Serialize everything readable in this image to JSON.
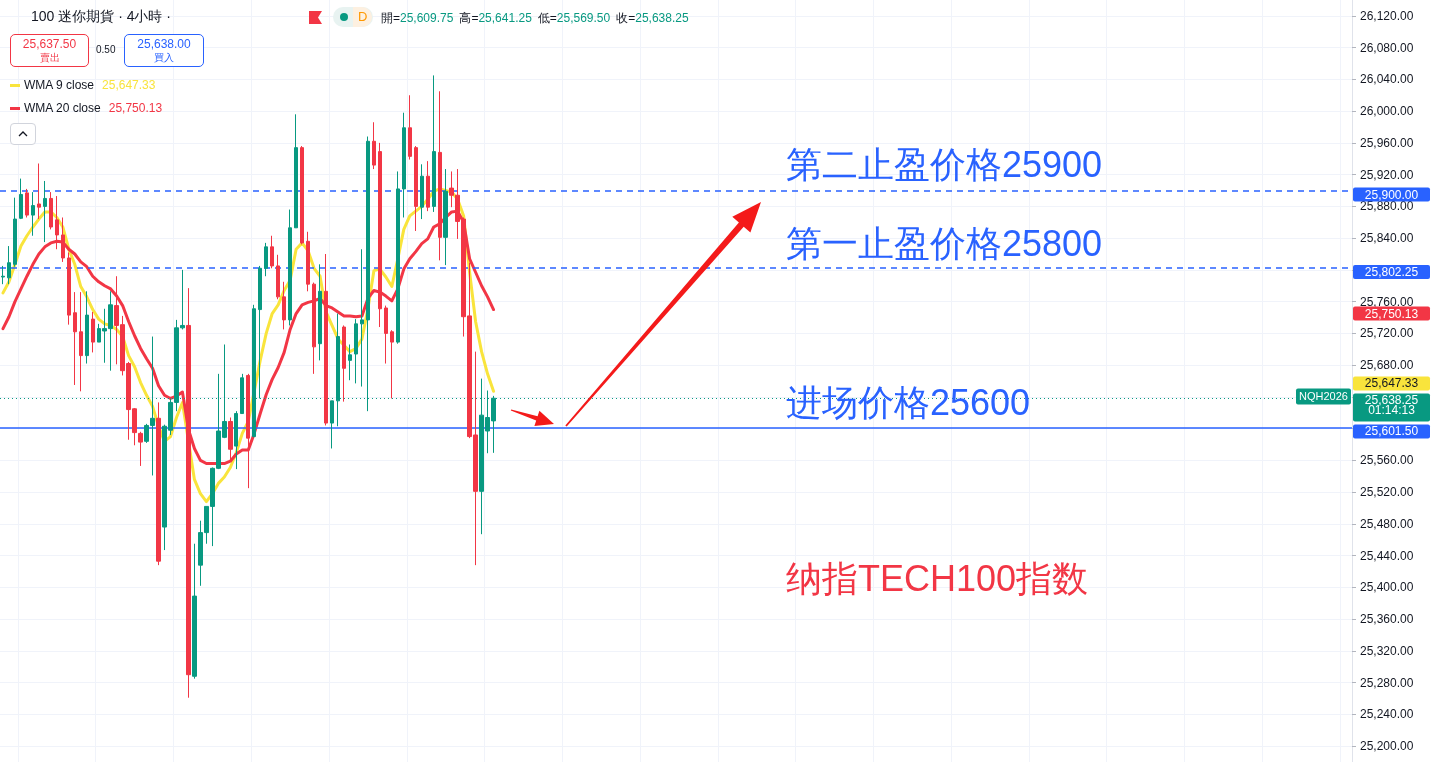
{
  "chart_data": {
    "type": "candlestick",
    "title": "100 迷你期貨 · 4小時 ·",
    "subtitle": "開=25,609.75 高=25,641.25 低=25,569.50 收=25,638.25",
    "categories": [
      null,
      null,
      null,
      null,
      null,
      null,
      null,
      null,
      null,
      null,
      null,
      null,
      null,
      null,
      null,
      null,
      null,
      null,
      null,
      null,
      null,
      null,
      null,
      null,
      null,
      null,
      null,
      null,
      null,
      null,
      null,
      null,
      null,
      null,
      null,
      null,
      null,
      null,
      null,
      null,
      null,
      null,
      null,
      null,
      null,
      null,
      null,
      null,
      null,
      null,
      null,
      null,
      null,
      null,
      null,
      null,
      null,
      null,
      null,
      null,
      null,
      null,
      null,
      null,
      null,
      null,
      null,
      null,
      null,
      null,
      null,
      null,
      null,
      null,
      null,
      null,
      null,
      null,
      null,
      null,
      null,
      null,
      null,
      null,
      null,
      null,
      null,
      null,
      null,
      null,
      null,
      null,
      null,
      null,
      null,
      null,
      null,
      null,
      null,
      null,
      null,
      null,
      null,
      null,
      null,
      null,
      null,
      null,
      null,
      null,
      null,
      null,
      null,
      null,
      null,
      null,
      null,
      null,
      null,
      null,
      null,
      null,
      null,
      null,
      null,
      null,
      null,
      null,
      null,
      null,
      null,
      null,
      null,
      null,
      null,
      null,
      null,
      null,
      null,
      null,
      null,
      null,
      null,
      null,
      null,
      null,
      null,
      null,
      null,
      null,
      null,
      null,
      null,
      null,
      null,
      null,
      null,
      null,
      null,
      null,
      null,
      null,
      null,
      null,
      null,
      null,
      null,
      null,
      null,
      null,
      null,
      null,
      null,
      null,
      null,
      null,
      null,
      null,
      null,
      null,
      null,
      null,
      null,
      null,
      null,
      null,
      null,
      null,
      null,
      null,
      null,
      null,
      null,
      null,
      null,
      null,
      null,
      null,
      null,
      null,
      null,
      null,
      null,
      null,
      null,
      null,
      null,
      null,
      null,
      null,
      null,
      null,
      null,
      null,
      null,
      null,
      null,
      null,
      null,
      null,
      null,
      null,
      null,
      null,
      null,
      null
    ],
    "ohlc": [
      [
        25791,
        25805,
        25782,
        25792
      ],
      [
        25790,
        25830,
        25782,
        25809
      ],
      [
        25807,
        25891,
        25804,
        25864
      ],
      [
        25865,
        25915,
        25864,
        25895
      ],
      [
        25897,
        25902,
        25866,
        25869
      ],
      [
        25869,
        25898,
        25843,
        25881
      ],
      [
        25883,
        25934,
        25864,
        25879
      ],
      [
        25880,
        25912,
        25835,
        25890
      ],
      [
        25890,
        25898,
        25851,
        25854
      ],
      [
        25863,
        25893,
        25826,
        25844
      ],
      [
        25844,
        25866,
        25810,
        25815
      ],
      [
        25815,
        25822,
        25731,
        25743
      ],
      [
        25746,
        25772,
        25655,
        25722
      ],
      [
        25722,
        25772,
        25647,
        25692
      ],
      [
        25692,
        25773,
        25682,
        25743
      ],
      [
        25738,
        25747,
        25696,
        25709
      ],
      [
        25709,
        25732,
        25709,
        25726
      ],
      [
        25723,
        25751,
        25683,
        25726
      ],
      [
        25726,
        25773,
        25673,
        25756
      ],
      [
        25755,
        25792,
        25681,
        25730
      ],
      [
        25731,
        25742,
        25667,
        25673
      ],
      [
        25682,
        25684,
        25586,
        25624
      ],
      [
        25625,
        25626,
        25579,
        25595
      ],
      [
        25594,
        25596,
        25553,
        25583
      ],
      [
        25584,
        25606,
        25582,
        25604
      ],
      [
        25604,
        25716,
        25541,
        25613
      ],
      [
        25613,
        25633,
        25428,
        25433
      ],
      [
        25476,
        25605,
        25447,
        25603
      ],
      [
        25598,
        25638,
        25592,
        25633
      ],
      [
        25633,
        25737,
        25622,
        25727
      ],
      [
        25727,
        25800,
        25725,
        25730
      ],
      [
        25730,
        25777,
        25261,
        25290
      ],
      [
        25288,
        25455,
        25285,
        25389
      ],
      [
        25428,
        25484,
        25402,
        25469
      ],
      [
        25469,
        25502,
        25455,
        25502
      ],
      [
        25502,
        25551,
        25452,
        25550
      ],
      [
        25550,
        25669,
        25549,
        25597
      ],
      [
        25589,
        25706,
        25588,
        25609
      ],
      [
        25609,
        25614,
        25560,
        25574
      ],
      [
        25578,
        25622,
        25549,
        25619
      ],
      [
        25619,
        25669,
        25619,
        25664
      ],
      [
        25667,
        25669,
        25525,
        25588
      ],
      [
        25590,
        25756,
        25589,
        25751
      ],
      [
        25750,
        25805,
        25638,
        25802
      ],
      [
        25802,
        25834,
        25792,
        25829
      ],
      [
        25829,
        25843,
        25802,
        25805
      ],
      [
        25805,
        25819,
        25763,
        25766
      ],
      [
        25766,
        25785,
        25725,
        25737
      ],
      [
        25737,
        25876,
        25730,
        25853
      ],
      [
        25853,
        25996,
        25853,
        25954
      ],
      [
        25954,
        25956,
        25832,
        25834
      ],
      [
        25836,
        25848,
        25773,
        25782
      ],
      [
        25782,
        25784,
        25669,
        25703
      ],
      [
        25707,
        25807,
        25686,
        25773
      ],
      [
        25773,
        25820,
        25604,
        25607
      ],
      [
        25607,
        25635,
        25575,
        25635
      ],
      [
        25635,
        25745,
        25603,
        25716
      ],
      [
        25728,
        25730,
        25634,
        25676
      ],
      [
        25686,
        25706,
        25661,
        25693
      ],
      [
        25694,
        25738,
        25657,
        25732
      ],
      [
        25732,
        25826,
        25653,
        25737
      ],
      [
        25737,
        25968,
        25622,
        25962
      ],
      [
        25962,
        25986,
        25927,
        25932
      ],
      [
        25949,
        25960,
        25728,
        25751
      ],
      [
        25752,
        25755,
        25682,
        25720
      ],
      [
        25722,
        25724,
        25638,
        25709
      ],
      [
        25709,
        25924,
        25707,
        25902
      ],
      [
        25902,
        25998,
        25866,
        25979
      ],
      [
        25979,
        26020,
        25939,
        25943
      ],
      [
        25954,
        25956,
        25849,
        25880
      ],
      [
        25879,
        25933,
        25864,
        25918
      ],
      [
        25918,
        25937,
        25874,
        25879
      ],
      [
        25880,
        26045,
        25873,
        25949
      ],
      [
        25948,
        26025,
        25812,
        25841
      ],
      [
        25841,
        25927,
        25806,
        25899
      ],
      [
        25903,
        25924,
        25879,
        25894
      ],
      [
        25894,
        25927,
        25839,
        25861
      ],
      [
        25864,
        25866,
        25716,
        25741
      ],
      [
        25742,
        25809,
        25588,
        25590
      ],
      [
        25592,
        25697,
        25428,
        25521
      ],
      [
        25521,
        25663,
        25467,
        25617
      ],
      [
        25597,
        25648,
        25569,
        25614
      ],
      [
        25609.75,
        25641.25,
        25569.5,
        25638.25
      ],
      null,
      null,
      null,
      null,
      null,
      null,
      null,
      null,
      null,
      null,
      null,
      null,
      null,
      null,
      null,
      null,
      null,
      null,
      null,
      null,
      null,
      null,
      null,
      null,
      null,
      null,
      null,
      null,
      null,
      null,
      null,
      null,
      null,
      null,
      null,
      null,
      null,
      null,
      null,
      null,
      null,
      null,
      null,
      null,
      null,
      null,
      null,
      null,
      null,
      null,
      null,
      null,
      null,
      null,
      null,
      null,
      null,
      null,
      null,
      null,
      null,
      null,
      null,
      null,
      null,
      null,
      null,
      null,
      null,
      null,
      null,
      null,
      null,
      null,
      null,
      null,
      null,
      null,
      null,
      null,
      null,
      null,
      null,
      null,
      null,
      null,
      null,
      null,
      null,
      null,
      null,
      null,
      null,
      null,
      null,
      null,
      null,
      null,
      null,
      null,
      null,
      null,
      null,
      null,
      null,
      null,
      null,
      null,
      null,
      null,
      null,
      null,
      null,
      null,
      null,
      null,
      null,
      null,
      null,
      null,
      null,
      null,
      null,
      null,
      null,
      null,
      null,
      null,
      null,
      null,
      null,
      null,
      null,
      null,
      null,
      null,
      null,
      null,
      null,
      null,
      null,
      null,
      null
    ],
    "colors": [
      "#089981",
      "#089981",
      "#089981",
      "#089981",
      "#f23645",
      "#089981",
      "#f23645",
      "#089981",
      "#f23645",
      "#f23645",
      "#f23645",
      "#f23645",
      "#f23645",
      "#f23645",
      "#089981",
      "#f23645",
      "#089981",
      "#089981",
      "#089981",
      "#f23645",
      "#f23645",
      "#f23645",
      "#f23645",
      "#f23645",
      "#089981",
      "#089981",
      "#f23645",
      "#089981",
      "#089981",
      "#089981",
      "#089981",
      "#f23645",
      "#089981",
      "#089981",
      "#089981",
      "#089981",
      "#089981",
      "#089981",
      "#f23645",
      "#089981",
      "#089981",
      "#f23645",
      "#089981",
      "#089981",
      "#089981",
      "#f23645",
      "#f23645",
      "#f23645",
      "#089981",
      "#089981",
      "#f23645",
      "#f23645",
      "#f23645",
      "#089981",
      "#f23645",
      "#089981",
      "#089981",
      "#f23645",
      "#089981",
      "#089981",
      "#089981",
      "#089981",
      "#f23645",
      "#f23645",
      "#f23645",
      "#f23645",
      "#089981",
      "#089981",
      "#f23645",
      "#f23645",
      "#089981",
      "#f23645",
      "#089981",
      "#f23645",
      "#089981",
      "#f23645",
      "#f23645",
      "#f23645",
      "#f23645",
      "#f23645",
      "#089981",
      "#089981",
      "#089981",
      null,
      null,
      null,
      null,
      null,
      null,
      null,
      null,
      null,
      null,
      null,
      null,
      null,
      null,
      null,
      null,
      null,
      null,
      null,
      null,
      null,
      null,
      null,
      null,
      null,
      null,
      null,
      null,
      null,
      null,
      null,
      null,
      null,
      null,
      null,
      null,
      null,
      null,
      null,
      null,
      null,
      null,
      null,
      null,
      null,
      null,
      null,
      null,
      null,
      null,
      null,
      null,
      null,
      null,
      null,
      null,
      null,
      null,
      null,
      null,
      null,
      null,
      null,
      null,
      null,
      null,
      null,
      null,
      null,
      null,
      null,
      null,
      null,
      null,
      null,
      null,
      null,
      null,
      null,
      null,
      null,
      null,
      null,
      null,
      null,
      null,
      null,
      null,
      null,
      null,
      null,
      null,
      null,
      null,
      null,
      null,
      null,
      null,
      null,
      null,
      null,
      null,
      null,
      null,
      null,
      null,
      null,
      null,
      null,
      null,
      null,
      null,
      null,
      null,
      null,
      null,
      null,
      null,
      null,
      null,
      null,
      null,
      null,
      null,
      null,
      null,
      null,
      null,
      null,
      null,
      null,
      null,
      null,
      null,
      null,
      null,
      null,
      null,
      null,
      null,
      null,
      null,
      null
    ],
    "series": [
      {
        "type": "line",
        "name": "WMA 9 close",
        "color": "#f9e43c",
        "values": [
          25771,
          25785,
          25807,
          25830,
          25843,
          25854,
          25864,
          25873,
          25873,
          25866,
          25854,
          25826,
          25807,
          25779,
          25766,
          25750,
          25738,
          25732,
          25730,
          25725,
          25716,
          25692,
          25678,
          25658,
          25642,
          25628,
          25603,
          25584,
          25590,
          25614,
          25633,
          null,
          25536,
          25518,
          25508,
          25518,
          25531,
          25539,
          25551,
          25570,
          25594,
          25609,
          null,
          25686,
          25720,
          25745,
          25756,
          25774,
          25787,
          25826,
          25834,
          25824,
          25802,
          25792,
          25747,
          25730,
          25713,
          25705,
          25697,
          25701,
          25713,
          25751,
          25799,
          25801,
          25791,
          25779,
          25814,
          25851,
          25868,
          25874,
          25880,
          25889,
          25899,
          25902,
          25900,
          25898,
          25889,
          25868,
          25797,
          25735,
          25697,
          25669,
          25647,
          null,
          null,
          null,
          null,
          null,
          null,
          null,
          null,
          null,
          null,
          null,
          null,
          null,
          null,
          null,
          null,
          null,
          null,
          null,
          null,
          null,
          null,
          null,
          null,
          null,
          null,
          null,
          null,
          null,
          null,
          null,
          null,
          null,
          null,
          null,
          null,
          null,
          null,
          null,
          null,
          null,
          null,
          null,
          null,
          null,
          null,
          null,
          null,
          null,
          null,
          null,
          null,
          null,
          null,
          null,
          null,
          null,
          null,
          null,
          null,
          null,
          null,
          null,
          null,
          null,
          null,
          null,
          null,
          null,
          null,
          null,
          null,
          null,
          null,
          null,
          null,
          null,
          null,
          null,
          null,
          null,
          null,
          null,
          null,
          null,
          null,
          null,
          null,
          null,
          null,
          null,
          null,
          null,
          null,
          null,
          null,
          null,
          null,
          null,
          null,
          null,
          null,
          null,
          null,
          null,
          null,
          null,
          null,
          null,
          null,
          null,
          null,
          null,
          null,
          null,
          null,
          null,
          null,
          null,
          null,
          null,
          null,
          null,
          null,
          null,
          null,
          null,
          null,
          null,
          null,
          null,
          null,
          null,
          null,
          null,
          null,
          null,
          null,
          null,
          null,
          null,
          null,
          null
        ]
      },
      {
        "type": "line",
        "name": "WMA 20 close",
        "color": "#f23645",
        "values": [
          25726,
          25741,
          25760,
          25776,
          25792,
          25807,
          25820,
          25829,
          25834,
          25836,
          25835,
          25826,
          25820,
          25810,
          25804,
          25792,
          25785,
          25780,
          25776,
          25767,
          25755,
          25735,
          25717,
          25701,
          25688,
          25676,
          25654,
          25642,
          25638,
          25641,
          25646,
          25599,
          25575,
          25560,
          25556,
          25556,
          25556,
          25556,
          25559,
          25568,
          25573,
          25573,
          25594,
          25619,
          25643,
          25662,
          25677,
          25696,
          25725,
          25745,
          25756,
          25759,
          25761,
          25764,
          25755,
          25752,
          25747,
          25742,
          25742,
          25741,
          25742,
          25764,
          25774,
          25772,
          25767,
          25761,
          25776,
          25801,
          25814,
          25823,
          25833,
          25839,
          25854,
          25858,
          25866,
          25873,
          25874,
          25860,
          25814,
          25797,
          25780,
          25766,
          25750,
          null,
          null,
          null,
          null,
          null,
          null,
          null,
          null,
          null,
          null,
          null,
          null,
          null,
          null,
          null,
          null,
          null,
          null,
          null,
          null,
          null,
          null,
          null,
          null,
          null,
          null,
          null,
          null,
          null,
          null,
          null,
          null,
          null,
          null,
          null,
          null,
          null,
          null,
          null,
          null,
          null,
          null,
          null,
          null,
          null,
          null,
          null,
          null,
          null,
          null,
          null,
          null,
          null,
          null,
          null,
          null,
          null,
          null,
          null,
          null,
          null,
          null,
          null,
          null,
          null,
          null,
          null,
          null,
          null,
          null,
          null,
          null,
          null,
          null,
          null,
          null,
          null,
          null,
          null,
          null,
          null,
          null,
          null,
          null,
          null,
          null,
          null,
          null,
          null,
          null,
          null,
          null,
          null,
          null,
          null,
          null,
          null,
          null,
          null,
          null,
          null,
          null,
          null,
          null,
          null,
          null,
          null,
          null,
          null,
          null,
          null,
          null,
          null,
          null,
          null,
          null,
          null,
          null,
          null,
          null,
          null,
          null,
          null,
          null,
          null,
          null,
          null,
          null,
          null,
          null,
          null,
          null,
          null,
          null,
          null,
          null,
          null,
          null,
          null,
          null,
          null,
          null,
          null
        ]
      }
    ],
    "ylim": [
      25180,
      26140
    ],
    "yticks": [
      {
        "value": 25200,
        "label": "25,200.00"
      },
      {
        "value": 25240,
        "label": "25,240.00"
      },
      {
        "value": 25280,
        "label": "25,280.00"
      },
      {
        "value": 25320,
        "label": "25,320.00"
      },
      {
        "value": 25360,
        "label": "25,360.00"
      },
      {
        "value": 25400,
        "label": "25,400.00"
      },
      {
        "value": 25440,
        "label": "25,440.00"
      },
      {
        "value": 25480,
        "label": "25,480.00"
      },
      {
        "value": 25520,
        "label": "25,520.00"
      },
      {
        "value": 25560,
        "label": "25,560.00"
      },
      {
        "value": 25600,
        "label": null
      },
      {
        "value": 25640,
        "label": null
      },
      {
        "value": 25680,
        "label": "25,680.00"
      },
      {
        "value": 25720,
        "label": "25,720.00"
      },
      {
        "value": 25760,
        "label": "25,760.00"
      },
      {
        "value": 25800,
        "label": null
      },
      {
        "value": 25840,
        "label": "25,840.00"
      },
      {
        "value": 25880,
        "label": "25,880.00"
      },
      {
        "value": 25920,
        "label": "25,920.00"
      },
      {
        "value": 25960,
        "label": "25,960.00"
      },
      {
        "value": 26000,
        "label": "26,000.00"
      },
      {
        "value": 26040,
        "label": "26,040.00"
      },
      {
        "value": 26080,
        "label": "26,080.00"
      },
      {
        "value": 26120,
        "label": "26,120.00"
      }
    ],
    "ref_lines": [
      {
        "axis": "y",
        "value": 25900,
        "label": "25,900.00",
        "color": "#2962ff",
        "line_style": "dashed"
      },
      {
        "axis": "y",
        "value": 25802.25,
        "label": "25,802.25",
        "color": "#2962ff",
        "line_style": "dashed"
      },
      {
        "axis": "y",
        "value": 25638.25,
        "label": "25,638.25",
        "color": "#089981",
        "line_style": "dotted"
      },
      {
        "axis": "y",
        "value": 25601.5,
        "label": "25,601.50",
        "color": "#2962ff",
        "line_style": "solid"
      }
    ],
    "annotations": [
      "25,637.50",
      "賣出",
      "0.50",
      "25,638.00",
      "買入",
      "D",
      {
        "text": "第二止盈价格25900",
        "y": 25900
      },
      {
        "text": "第一止盈价格25800",
        "y": 25800
      },
      {
        "text": "进场价格25600",
        "y": 25600
      },
      "纳指TECH100指数",
      "NQH2026",
      "01:14:13",
      "25,647.33",
      "25,750.13"
    ],
    "grid": true,
    "legend": "top left",
    "tick_labels": "y"
  }
}
